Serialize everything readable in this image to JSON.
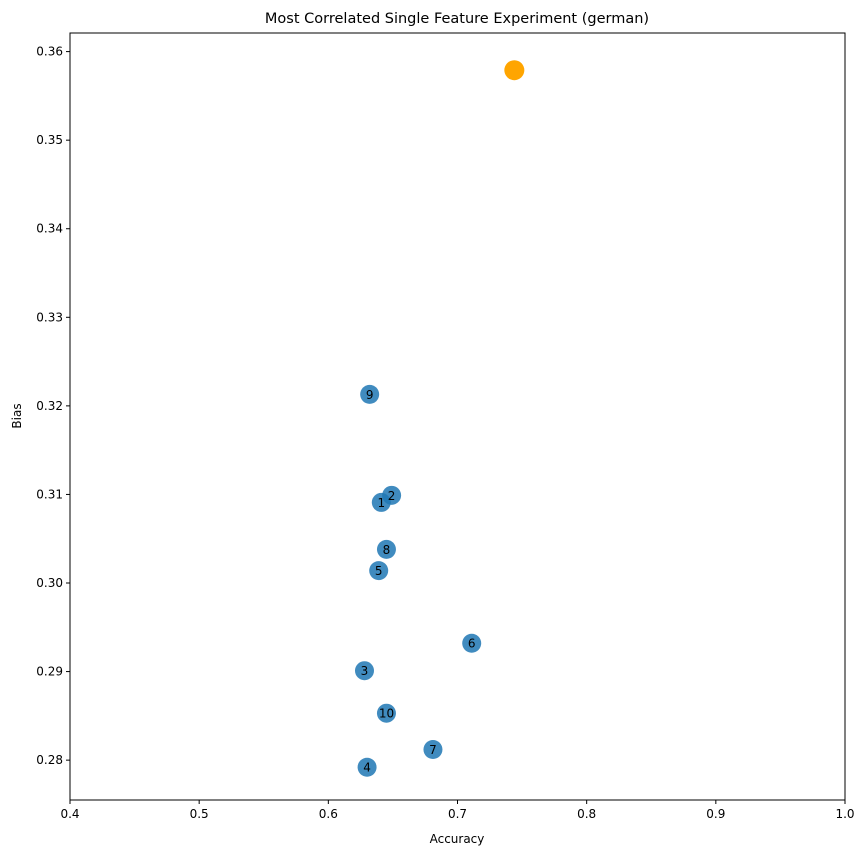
{
  "chart_data": {
    "type": "scatter",
    "title": "Most Correlated Single Feature Experiment (german)",
    "xlabel": "Accuracy",
    "ylabel": "Bias",
    "xlim": [
      0.4,
      1.0
    ],
    "ylim": [
      0.2755,
      0.3621
    ],
    "grid": false,
    "legend": "none",
    "xticks": [
      "0.4",
      "0.5",
      "0.6",
      "0.7",
      "0.8",
      "0.9",
      "1.0"
    ],
    "yticks": [
      "0.28",
      "0.29",
      "0.30",
      "0.31",
      "0.32",
      "0.33",
      "0.34",
      "0.35",
      "0.36"
    ],
    "series": [
      {
        "color": "#1f77b4",
        "points": [
          {
            "label": "1",
            "x": 0.641,
            "y": 0.3091
          },
          {
            "label": "2",
            "x": 0.649,
            "y": 0.3099
          },
          {
            "label": "3",
            "x": 0.628,
            "y": 0.2901
          },
          {
            "label": "4",
            "x": 0.63,
            "y": 0.2792
          },
          {
            "label": "5",
            "x": 0.639,
            "y": 0.3014
          },
          {
            "label": "6",
            "x": 0.711,
            "y": 0.2932
          },
          {
            "label": "7",
            "x": 0.681,
            "y": 0.2812
          },
          {
            "label": "8",
            "x": 0.645,
            "y": 0.3038
          },
          {
            "label": "9",
            "x": 0.632,
            "y": 0.3213
          },
          {
            "label": "10",
            "x": 0.645,
            "y": 0.2853
          }
        ]
      },
      {
        "color": "#ffa500",
        "points": [
          {
            "label": "",
            "x": 0.744,
            "y": 0.3579
          }
        ]
      }
    ]
  }
}
